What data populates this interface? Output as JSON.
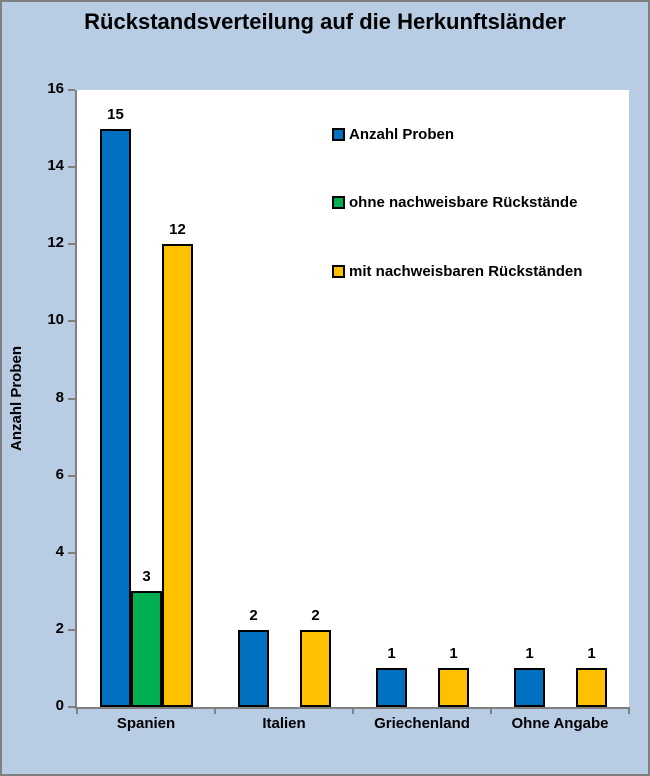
{
  "chart_data": {
    "type": "bar",
    "title": "Rückstandsverteilung auf die Herkunftsländer",
    "ylabel": "Anzahl Proben",
    "xlabel": "",
    "ylim": [
      0,
      16
    ],
    "yticks": [
      0,
      2,
      4,
      6,
      8,
      10,
      12,
      14,
      16
    ],
    "grid": false,
    "legend_position": "inside-top-right",
    "categories": [
      "Spanien",
      "Italien",
      "Griechenland",
      "Ohne Angabe"
    ],
    "series": [
      {
        "name": "Anzahl Proben",
        "color": "#0070C0",
        "values": [
          15,
          2,
          1,
          1
        ]
      },
      {
        "name": "ohne nachweisbare Rückstände",
        "color": "#00B050",
        "values": [
          3,
          0,
          0,
          0
        ]
      },
      {
        "name": "mit nachweisbaren Rückständen",
        "color": "#FFC000",
        "values": [
          12,
          2,
          1,
          1
        ]
      }
    ]
  },
  "colors": {
    "background": "#B8CCE4",
    "frame_border": "#808080",
    "plot_background": "#FFFFFF",
    "axis": "#808080",
    "bar_border": "#000000",
    "text": "#000000"
  }
}
